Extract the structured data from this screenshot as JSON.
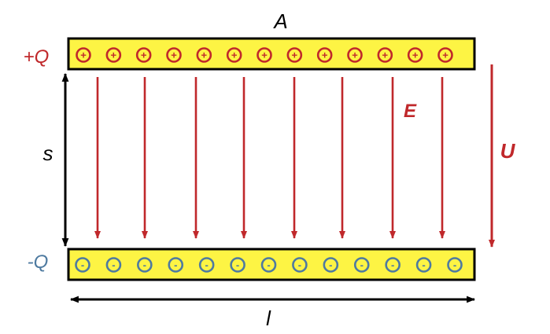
{
  "labels": {
    "area": "A",
    "positive_charge": "+Q",
    "negative_charge": "-Q",
    "separation": "s",
    "field": "E",
    "voltage": "U",
    "length": "l"
  },
  "positive_symbol": "+",
  "negative_symbol": "-",
  "positive_charge_count": 13,
  "negative_charge_count": 13,
  "field_line_count": 8,
  "colors": {
    "plate_fill": "#fdf444",
    "plate_border": "#000000",
    "positive": "#c0282b",
    "negative": "#4e7aa0",
    "field": "#c0282b",
    "dimension": "#000000"
  }
}
